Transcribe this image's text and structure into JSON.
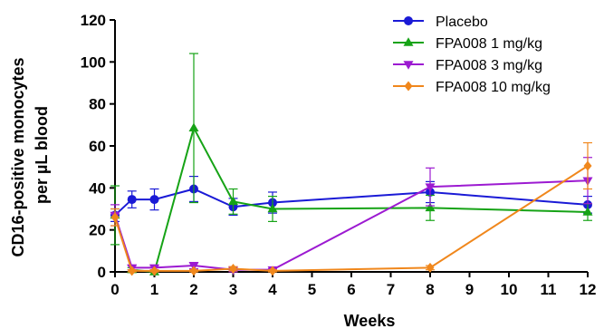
{
  "chart_data": {
    "type": "line",
    "xlabel": "Weeks",
    "ylabel_lines": [
      "CD16-positive monocytes",
      "per µL blood"
    ],
    "xlim": [
      0,
      12
    ],
    "ylim": [
      0,
      120
    ],
    "x_ticks": [
      "0",
      "1",
      "2",
      "3",
      "4",
      "5",
      "6",
      "7",
      "8",
      "9",
      "10",
      "11",
      "12"
    ],
    "y_ticks": [
      "0",
      "20",
      "40",
      "60",
      "80",
      "100",
      "120"
    ],
    "grid": false,
    "legend_position": "top-right",
    "series": [
      {
        "name": "Placebo",
        "color": "#1a1ad6",
        "marker": "circle",
        "x": [
          0,
          0.43,
          1,
          2,
          3,
          4,
          8,
          12
        ],
        "y": [
          27,
          34.5,
          34.5,
          39.5,
          31,
          33,
          38,
          32
        ],
        "err": [
          3,
          4,
          5,
          6,
          4,
          5,
          5,
          4
        ]
      },
      {
        "name": "FPA008 1 mg/kg",
        "color": "#16a316",
        "marker": "triangle-up",
        "x": [
          0,
          0.43,
          1,
          2,
          3,
          4,
          8,
          12
        ],
        "y": [
          27,
          1,
          0,
          68.5,
          33.5,
          30,
          30.5,
          28.5
        ],
        "err": [
          14,
          1,
          1,
          35.5,
          6,
          6,
          6,
          4
        ]
      },
      {
        "name": "FPA008 3 mg/kg",
        "color": "#9c1ad1",
        "marker": "triangle-down",
        "x": [
          0,
          0.43,
          1,
          2,
          3,
          4,
          8,
          12
        ],
        "y": [
          27,
          2,
          2,
          3,
          1,
          1,
          40.5,
          43.5
        ],
        "err": [
          5,
          1,
          1,
          1.5,
          1,
          0.5,
          9,
          11
        ]
      },
      {
        "name": "FPA008 10 mg/kg",
        "color": "#f0871c",
        "marker": "diamond",
        "x": [
          0,
          0.43,
          1,
          2,
          3,
          4,
          8,
          12
        ],
        "y": [
          26,
          0.5,
          0.5,
          0.5,
          1.5,
          0.5,
          2,
          50.5
        ],
        "err": [
          4,
          0.5,
          0.5,
          0.5,
          1,
          0.5,
          1,
          11
        ]
      }
    ]
  }
}
